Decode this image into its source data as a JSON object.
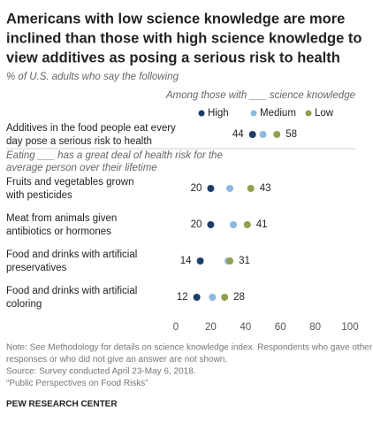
{
  "chart_data": {
    "type": "dot",
    "title": [
      "Americans with low science knowledge are more",
      "inclined than those with high science knowledge to",
      "view additives as posing a serious risk to health"
    ],
    "subtitle": "% of U.S. adults who say the following",
    "legend_title": "Among those with ___ science knowledge",
    "section_label": [
      "Eating ___ has a great deal of health risk for the",
      "average person over their lifetime"
    ],
    "categories": [
      [
        "Additives in the food people eat every",
        "day pose a serious risk to health"
      ],
      [
        "Fruits and vegetables grown",
        "with pesticides"
      ],
      [
        "Meat from animals given",
        "antibiotics or hormones"
      ],
      [
        "Food and drinks with artificial",
        "preservatives"
      ],
      [
        "Food and drinks with artificial",
        "coloring"
      ]
    ],
    "series": [
      {
        "name": "High",
        "color": "#1e3d6b",
        "values": [
          44,
          20,
          20,
          14,
          12
        ],
        "labeled": true,
        "label_side": "left"
      },
      {
        "name": "Medium",
        "color": "#8db8e2",
        "values": [
          50,
          31,
          33,
          30,
          21
        ],
        "labeled": false
      },
      {
        "name": "Low",
        "color": "#929f4f",
        "values": [
          58,
          43,
          41,
          31,
          28
        ],
        "labeled": true,
        "label_side": "right"
      }
    ],
    "xlim": [
      0,
      100
    ],
    "xticks": [
      0,
      20,
      40,
      60,
      80,
      100
    ],
    "grid": false,
    "notes": [
      "Note: See Methodology for details on science knowledge index. Respondents who gave other",
      "responses or who did not give an answer are not shown.",
      "Source: Survey conducted April 23-May 6, 2018.",
      "“Public Perspectives on Food Risks”"
    ],
    "source_org": "PEW RESEARCH CENTER"
  }
}
